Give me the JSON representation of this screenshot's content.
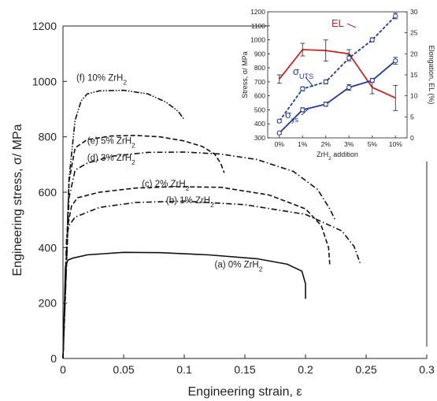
{
  "chart_data": [
    {
      "type": "line",
      "xlabel": "Engineering strain, ε",
      "ylabel": "Engineering stress, σ/ MPa",
      "xlim": [
        0,
        0.3
      ],
      "ylim": [
        0,
        1200
      ],
      "xticks": [
        "0",
        "0.05",
        "0.1",
        "0.15",
        "0.2",
        "0.25",
        "0.3"
      ],
      "yticks": [
        "0",
        "200",
        "400",
        "600",
        "800",
        "1000",
        "1200"
      ],
      "grid": false,
      "series": [
        {
          "name": "(a) 0% ZrH2",
          "label_text": "(a) 0% ZrH",
          "label_sub": "2",
          "style": "solid",
          "x": [
            0,
            0.002,
            0.004,
            0.008,
            0.02,
            0.05,
            0.08,
            0.12,
            0.16,
            0.185,
            0.197,
            0.2,
            0.2
          ],
          "y": [
            0,
            330,
            355,
            362,
            374,
            383,
            382,
            374,
            360,
            340,
            315,
            270,
            215
          ]
        },
        {
          "name": "(b) 1% ZrH2",
          "label_text": "(b) 1% ZrH",
          "label_sub": "2",
          "style": "dashdot",
          "x": [
            0,
            0.003,
            0.005,
            0.01,
            0.03,
            0.06,
            0.1,
            0.15,
            0.2,
            0.23,
            0.24,
            0.245
          ],
          "y": [
            0,
            440,
            480,
            510,
            545,
            563,
            568,
            555,
            520,
            460,
            405,
            345
          ]
        },
        {
          "name": "(c) 2% ZrH2",
          "label_text": "(c) 2% ZrH",
          "label_sub": "2",
          "style": "dashed",
          "x": [
            0,
            0.004,
            0.007,
            0.012,
            0.03,
            0.06,
            0.09,
            0.13,
            0.17,
            0.2,
            0.213,
            0.219,
            0.22
          ],
          "y": [
            0,
            480,
            550,
            580,
            600,
            615,
            620,
            618,
            590,
            540,
            480,
            400,
            340
          ]
        },
        {
          "name": "(d) 3% ZrH2",
          "label_text": "(d) 3% ZrH",
          "label_sub": "2",
          "style": "dashdot",
          "x": [
            0,
            0.005,
            0.01,
            0.02,
            0.04,
            0.07,
            0.1,
            0.13,
            0.16,
            0.19,
            0.21,
            0.22,
            0.225
          ],
          "y": [
            0,
            580,
            680,
            705,
            730,
            744,
            745,
            738,
            718,
            675,
            610,
            540,
            495
          ]
        },
        {
          "name": "(e) 5% ZrH2",
          "label_text": "(e) 5% ZrH",
          "label_sub": "2",
          "style": "dashed",
          "x": [
            0,
            0.005,
            0.01,
            0.02,
            0.04,
            0.06,
            0.08,
            0.1,
            0.115,
            0.125,
            0.13,
            0.133
          ],
          "y": [
            0,
            640,
            760,
            790,
            803,
            805,
            800,
            785,
            765,
            738,
            705,
            670
          ]
        },
        {
          "name": "(f) 10% ZrH2",
          "label_text": "(f) 10% ZrH",
          "label_sub": "2",
          "style": "dashdotdot",
          "x": [
            0,
            0.005,
            0.01,
            0.015,
            0.02,
            0.03,
            0.05,
            0.07,
            0.085,
            0.095,
            0.1
          ],
          "y": [
            0,
            650,
            860,
            930,
            955,
            966,
            968,
            955,
            925,
            892,
            862
          ]
        }
      ]
    },
    {
      "type": "line",
      "xlabel": "ZrH2 addition",
      "xlabel_text": "ZrH",
      "xlabel_sub": "2",
      "xlabel_suffix": " addition",
      "ylabel": "Stress, σ/ MPa",
      "y2label": "Elongation, EL (%)",
      "categories": [
        "0%",
        "1%",
        "2%",
        "3%",
        "5%",
        "10%"
      ],
      "ylim": [
        300,
        1200
      ],
      "y2lim": [
        0,
        30
      ],
      "yticks": [
        "300",
        "400",
        "500",
        "600",
        "700",
        "800",
        "900",
        "1000",
        "1100",
        "1200"
      ],
      "y2ticks": [
        "0",
        "5",
        "10",
        "15",
        "20",
        "25",
        "30"
      ],
      "series": [
        {
          "name": "EL",
          "label_text": "EL",
          "axis": "right",
          "color": "#cc2222",
          "style": "solid",
          "values": [
            14,
            21,
            20.8,
            20,
            12,
            9.5
          ],
          "error": [
            1,
            1.5,
            2.5,
            1,
            1.5,
            3
          ]
        },
        {
          "name": "σUTS",
          "label_text": "σ",
          "label_sub": "UTS",
          "axis": "left",
          "color": "#1f3a9e",
          "style": "dashed",
          "values": [
            420,
            650,
            700,
            870,
            1000,
            1170
          ],
          "error": [
            10,
            15,
            15,
            20,
            15,
            20
          ]
        },
        {
          "name": "σys",
          "label_text": "σ",
          "label_sub": "ys",
          "axis": "left",
          "color": "#1f3a9e",
          "style": "solid",
          "values": [
            335,
            500,
            540,
            660,
            710,
            850
          ],
          "error": [
            10,
            15,
            15,
            20,
            15,
            25
          ]
        }
      ]
    }
  ]
}
